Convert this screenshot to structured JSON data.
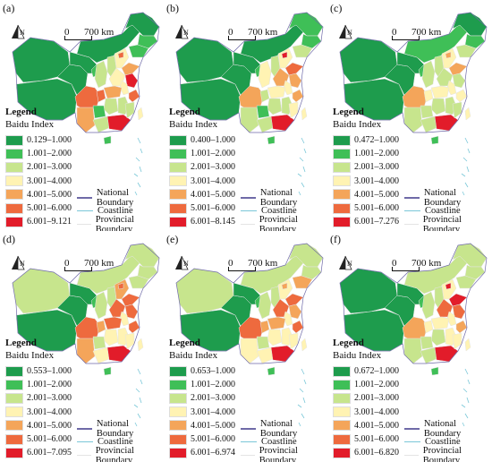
{
  "colors": {
    "c1": "#1e9c4d",
    "c2": "#3fbf57",
    "c3": "#c7e58d",
    "c4": "#fff3b3",
    "c5": "#f4a55a",
    "c6": "#ee6a3e",
    "c7": "#e21c2a",
    "national": "#6f6aa8",
    "coast": "#7ac7d8",
    "provincial": "#e4e4e4"
  },
  "map": {
    "north_label": "N",
    "scale_zero": "0",
    "scale_label": "700 km",
    "legend_title": "Legend",
    "legend_subtitle": "Baidu Index",
    "lines": [
      {
        "label": "National Boundary"
      },
      {
        "label": "Coastline"
      },
      {
        "label": "Provincial Boundary"
      }
    ]
  },
  "panels": [
    {
      "letter": "(a)",
      "classes": [
        "0.129–1.000",
        "1.001–2.000",
        "2.001–3.000",
        "3.001–4.000",
        "4.001–5.000",
        "5.001–6.000",
        "6.001–9.121"
      ],
      "fills": {
        "xinjiang": "c1",
        "tibet": "c1",
        "qinghai": "c1",
        "gansu": "c1",
        "innermongolia": "c1",
        "heilongjiang": "c1",
        "jilin": "c2",
        "liaoning": "c2",
        "ningxia": "c2",
        "shaanxi": "c3",
        "shanxi": "c3",
        "hebei": "c4",
        "beijing": "c6",
        "henan": "c4",
        "shandong": "c5",
        "jiangsu": "c7",
        "anhui": "c4",
        "zhejiang": "c6",
        "sichuan": "c6",
        "chongqing": "c6",
        "hubei": "c5",
        "hunan": "c3",
        "jiangxi": "c3",
        "guizhou": "c2",
        "yunnan": "c5",
        "guangxi": "c3",
        "guangdong": "c7",
        "fujian": "c3",
        "hainan": "c2",
        "taiwan": "c4"
      }
    },
    {
      "letter": "(b)",
      "classes": [
        "0.400–1.000",
        "1.001–2.000",
        "2.001–3.000",
        "3.001–4.000",
        "4.001–5.000",
        "5.001–6.000",
        "6.001–8.145"
      ],
      "fills": {
        "xinjiang": "c1",
        "tibet": "c1",
        "qinghai": "c1",
        "gansu": "c1",
        "innermongolia": "c1",
        "heilongjiang": "c2",
        "jilin": "c2",
        "liaoning": "c3",
        "ningxia": "c2",
        "shaanxi": "c4",
        "shanxi": "c3",
        "hebei": "c4",
        "beijing": "c7",
        "henan": "c5",
        "shandong": "c6",
        "jiangsu": "c5",
        "anhui": "c4",
        "zhejiang": "c5",
        "sichuan": "c5",
        "chongqing": "c3",
        "hubei": "c4",
        "hunan": "c3",
        "jiangxi": "c3",
        "guizhou": "c2",
        "yunnan": "c3",
        "guangxi": "c3",
        "guangdong": "c7",
        "fujian": "c4",
        "hainan": "c2",
        "taiwan": "c4"
      }
    },
    {
      "letter": "(c)",
      "classes": [
        "0.472–1.000",
        "1.001–2.000",
        "2.001–3.000",
        "3.001–4.000",
        "4.001–5.000",
        "5.001–6.000",
        "6.001–7.276"
      ],
      "fills": {
        "xinjiang": "c1",
        "tibet": "c1",
        "qinghai": "c1",
        "gansu": "c1",
        "innermongolia": "c2",
        "heilongjiang": "c1",
        "jilin": "c2",
        "liaoning": "c3",
        "ningxia": "c2",
        "shaanxi": "c3",
        "shanxi": "c3",
        "hebei": "c4",
        "beijing": "c5",
        "henan": "c3",
        "shandong": "c5",
        "jiangsu": "c3",
        "anhui": "c4",
        "zhejiang": "c4",
        "sichuan": "c5",
        "chongqing": "c4",
        "hubei": "c4",
        "hunan": "c3",
        "jiangxi": "c3",
        "guizhou": "c3",
        "yunnan": "c3",
        "guangxi": "c3",
        "guangdong": "c7",
        "fujian": "c3",
        "hainan": "c2",
        "taiwan": "c4"
      }
    },
    {
      "letter": "(d)",
      "classes": [
        "0.553–1.000",
        "1.001–2.000",
        "2.001–3.000",
        "3.001–4.000",
        "4.001–5.000",
        "5.001–6.000",
        "6.001–7.095"
      ],
      "fills": {
        "xinjiang": "c3",
        "tibet": "c1",
        "qinghai": "c1",
        "gansu": "c1",
        "innermongolia": "c3",
        "heilongjiang": "c3",
        "jilin": "c3",
        "liaoning": "c3",
        "ningxia": "c2",
        "shaanxi": "c3",
        "shanxi": "c3",
        "hebei": "c5",
        "beijing": "c6",
        "henan": "c6",
        "shandong": "c6",
        "jiangsu": "c6",
        "anhui": "c4",
        "zhejiang": "c6",
        "sichuan": "c6",
        "chongqing": "c5",
        "hubei": "c6",
        "hunan": "c4",
        "jiangxi": "c4",
        "guizhou": "c3",
        "yunnan": "c5",
        "guangxi": "c4",
        "guangdong": "c7",
        "fujian": "c4",
        "hainan": "c2",
        "taiwan": "c4"
      }
    },
    {
      "letter": "(e)",
      "classes": [
        "0.653–1.000",
        "1.001–2.000",
        "2.001–3.000",
        "3.001–4.000",
        "4.001–5.000",
        "5.001–6.000",
        "6.001–6.974"
      ],
      "fills": {
        "xinjiang": "c3",
        "tibet": "c1",
        "qinghai": "c1",
        "gansu": "c1",
        "innermongolia": "c3",
        "heilongjiang": "c3",
        "jilin": "c3",
        "liaoning": "c5",
        "ningxia": "c2",
        "shaanxi": "c3",
        "shanxi": "c3",
        "hebei": "c4",
        "beijing": "c5",
        "henan": "c6",
        "shandong": "c6",
        "jiangsu": "c5",
        "anhui": "c4",
        "zhejiang": "c6",
        "sichuan": "c6",
        "chongqing": "c5",
        "hubei": "c5",
        "hunan": "c4",
        "jiangxi": "c4",
        "guizhou": "c3",
        "yunnan": "c4",
        "guangxi": "c4",
        "guangdong": "c7",
        "fujian": "c4",
        "hainan": "c2",
        "taiwan": "c4"
      }
    },
    {
      "letter": "(f)",
      "classes": [
        "0.672–1.000",
        "1.001–2.000",
        "2.001–3.000",
        "3.001–4.000",
        "4.001–5.000",
        "5.001–6.000",
        "6.001–6.820"
      ],
      "fills": {
        "xinjiang": "c1",
        "tibet": "c1",
        "qinghai": "c1",
        "gansu": "c1",
        "innermongolia": "c3",
        "heilongjiang": "c3",
        "jilin": "c3",
        "liaoning": "c3",
        "ningxia": "c2",
        "shaanxi": "c3",
        "shanxi": "c3",
        "hebei": "c4",
        "beijing": "c7",
        "henan": "c6",
        "shandong": "c7",
        "jiangsu": "c6",
        "anhui": "c4",
        "zhejiang": "c5",
        "sichuan": "c5",
        "chongqing": "c4",
        "hubei": "c4",
        "hunan": "c3",
        "jiangxi": "c4",
        "guizhou": "c3",
        "yunnan": "c3",
        "guangxi": "c3",
        "guangdong": "c7",
        "fujian": "c4",
        "hainan": "c2",
        "taiwan": "c4"
      }
    }
  ]
}
